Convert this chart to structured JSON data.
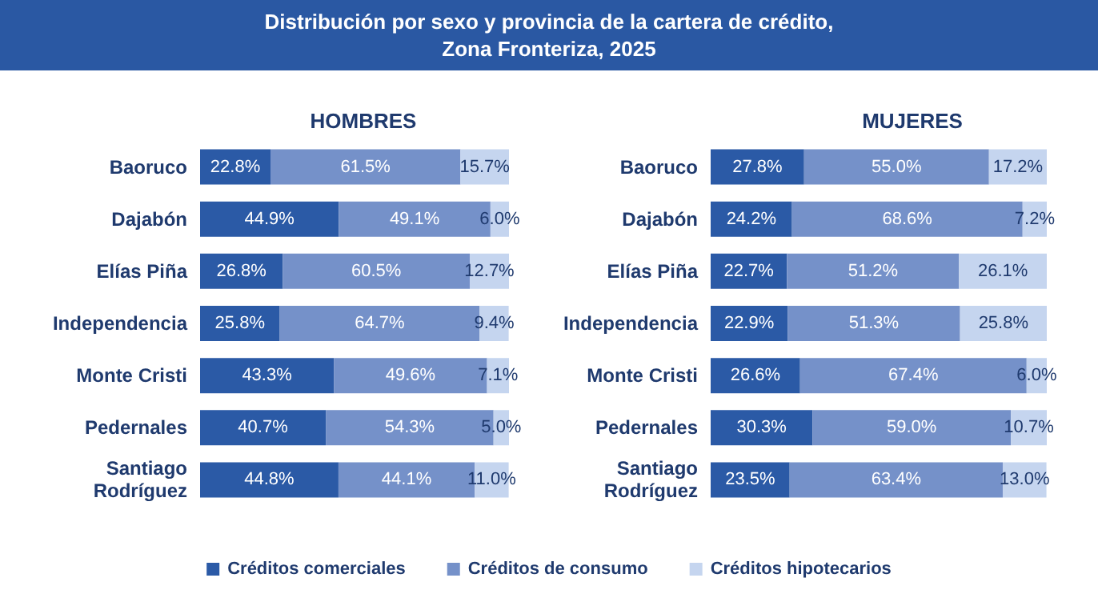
{
  "chart_data": [
    {
      "type": "bar",
      "orientation": "horizontal",
      "stacked": true,
      "title": "Distribución por sexo y provincia de la cartera de crédito,\nZona Fronteriza, 2025",
      "subtitle": "HOMBRES",
      "categories": [
        "Baoruco",
        "Dajabón",
        "Elías Piña",
        "Independencia",
        "Monte Cristi",
        "Pedernales",
        "Santiago\nRodríguez"
      ],
      "xlim": [
        0,
        100
      ],
      "tick_labels": "y",
      "legend": "bottom",
      "series": [
        {
          "name": "Créditos comerciales",
          "color": "#2b5aa6",
          "values": [
            22.8,
            44.9,
            26.8,
            25.8,
            43.3,
            40.7,
            44.8
          ],
          "value_labels": [
            "22.8%",
            "44.9%",
            "26.8%",
            "25.8%",
            "43.3%",
            "40.7%",
            "44.8%"
          ]
        },
        {
          "name": "Créditos de consumo",
          "color": "#7591c9",
          "values": [
            61.5,
            49.1,
            60.5,
            64.7,
            49.6,
            54.3,
            44.1
          ],
          "value_labels": [
            "61.5%",
            "49.1%",
            "60.5%",
            "64.7%",
            "49.6%",
            "54.3%",
            "44.1%"
          ]
        },
        {
          "name": "Créditos hipotecarios",
          "color": "#c5d5ef",
          "values": [
            15.7,
            6.0,
            12.7,
            9.4,
            7.1,
            5.0,
            11.0
          ],
          "value_labels": [
            "15.7%",
            "6.0%",
            "12.7%",
            "9.4%",
            "7.1%",
            "5.0%",
            "11.0%"
          ]
        }
      ]
    },
    {
      "type": "bar",
      "orientation": "horizontal",
      "stacked": true,
      "subtitle": "MUJERES",
      "categories": [
        "Baoruco",
        "Dajabón",
        "Elías Piña",
        "Independencia",
        "Monte Cristi",
        "Pedernales",
        "Santiago\nRodríguez"
      ],
      "xlim": [
        0,
        100
      ],
      "tick_labels": "y",
      "legend": false,
      "series": [
        {
          "color": "#2b5aa6",
          "values": [
            27.8,
            24.2,
            22.7,
            22.9,
            26.6,
            30.3,
            23.5
          ],
          "value_labels": [
            "27.8%",
            "24.2%",
            "22.7%",
            "22.9%",
            "26.6%",
            "30.3%",
            "23.5%"
          ]
        },
        {
          "color": "#7591c9",
          "values": [
            55.0,
            68.6,
            51.2,
            51.3,
            67.4,
            59.0,
            63.4
          ],
          "value_labels": [
            "55.0%",
            "68.6%",
            "51.2%",
            "51.3%",
            "67.4%",
            "59.0%",
            "63.4%"
          ]
        },
        {
          "color": "#c5d5ef",
          "values": [
            17.2,
            7.2,
            26.1,
            25.8,
            6.0,
            10.7,
            13.0
          ],
          "value_labels": [
            "17.2%",
            "7.2%",
            "26.1%",
            "25.8%",
            "6.0%",
            "10.7%",
            "13.0%"
          ]
        }
      ]
    }
  ]
}
